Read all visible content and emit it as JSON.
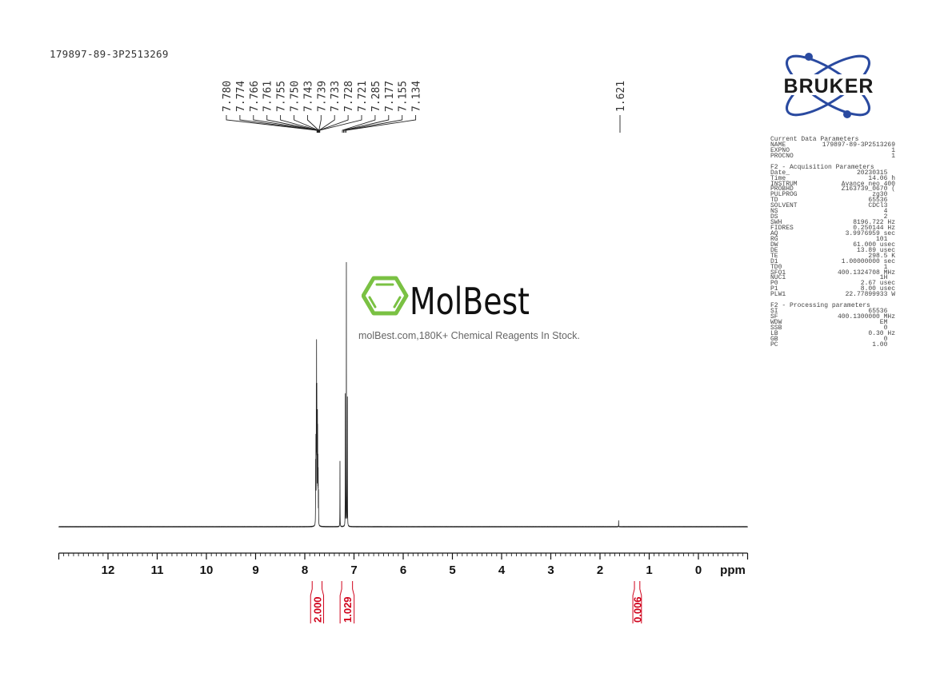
{
  "sample_id": "179897-89-3P2513269",
  "logo": {
    "text": "BRUKER",
    "color": "#1a3a8f"
  },
  "watermark": {
    "brand": "MolBest",
    "tagline": "molBest.com,180K+ Chemical Reagents In Stock.",
    "color": "#7ac143"
  },
  "parameters": {
    "sections": [
      {
        "title": "Current Data Parameters",
        "rows": [
          [
            "NAME",
            "179897-89-3P2513269"
          ],
          [
            "EXPNO",
            "1"
          ],
          [
            "PROCNO",
            "1"
          ]
        ]
      },
      {
        "title": "F2 - Acquisition Parameters",
        "rows": [
          [
            "Date_",
            "20230315  "
          ],
          [
            "Time",
            "14.06 h"
          ],
          [
            "INSTRUM",
            "Avance neo 400"
          ],
          [
            "PROBHD",
            "Z163739_0670 ("
          ],
          [
            "PULPROG",
            "zg30  "
          ],
          [
            "TD",
            "65536  "
          ],
          [
            "SOLVENT",
            "CDCl3  "
          ],
          [
            "NS",
            "4  "
          ],
          [
            "DS",
            "2  "
          ],
          [
            "SWH",
            "8196.722 Hz"
          ],
          [
            "FIDRES",
            "0.250144 Hz"
          ],
          [
            "AQ",
            "3.9976959 sec"
          ],
          [
            "RG",
            "101  "
          ],
          [
            "DW",
            "61.000 usec"
          ],
          [
            "DE",
            "13.89 usec"
          ],
          [
            "TE",
            "298.5 K"
          ],
          [
            "D1",
            "1.00000000 sec"
          ],
          [
            "TD0",
            "1  "
          ],
          [
            "SFO1",
            "400.1324708 MHz"
          ],
          [
            "NUC1",
            "1H  "
          ],
          [
            "P0",
            "2.67 usec"
          ],
          [
            "P1",
            "8.00 usec"
          ],
          [
            "PLW1",
            "22.77899933 W"
          ]
        ]
      },
      {
        "title": "F2 - Processing parameters",
        "rows": [
          [
            "SI",
            "65536  "
          ],
          [
            "SF",
            "400.1300000 MHz"
          ],
          [
            "WDW",
            "EM  "
          ],
          [
            "SSB",
            "0  "
          ],
          [
            "LB",
            "0.30 Hz"
          ],
          [
            "GB",
            "0  "
          ],
          [
            "PC",
            "1.00  "
          ]
        ]
      }
    ]
  },
  "chart_data": {
    "type": "line",
    "xlabel": "ppm",
    "xlim": [
      13,
      -1
    ],
    "x_reversed": true,
    "x_ticks": [
      "12",
      "11",
      "10",
      "9",
      "8",
      "7",
      "6",
      "5",
      "4",
      "3",
      "2",
      "1",
      "0"
    ],
    "grid": false,
    "peak_labels_group1": [
      "7.780",
      "7.774",
      "7.766",
      "7.761",
      "7.755",
      "7.750",
      "7.743",
      "7.739",
      "7.733",
      "7.728",
      "7.721",
      "7.285",
      "7.177",
      "7.155",
      "7.134"
    ],
    "peak_labels_group2": [
      "1.621"
    ],
    "peaks": [
      {
        "ppm": 7.78,
        "intensity": 0.22
      },
      {
        "ppm": 7.774,
        "intensity": 0.3
      },
      {
        "ppm": 7.766,
        "intensity": 0.45
      },
      {
        "ppm": 7.761,
        "intensity": 0.62
      },
      {
        "ppm": 7.755,
        "intensity": 0.45
      },
      {
        "ppm": 7.75,
        "intensity": 0.32
      },
      {
        "ppm": 7.743,
        "intensity": 0.36
      },
      {
        "ppm": 7.739,
        "intensity": 0.3
      },
      {
        "ppm": 7.733,
        "intensity": 0.22
      },
      {
        "ppm": 7.728,
        "intensity": 0.18
      },
      {
        "ppm": 7.721,
        "intensity": 0.12
      },
      {
        "ppm": 7.285,
        "intensity": 0.25
      },
      {
        "ppm": 7.177,
        "intensity": 0.5
      },
      {
        "ppm": 7.155,
        "intensity": 1.0
      },
      {
        "ppm": 7.134,
        "intensity": 0.48
      },
      {
        "ppm": 1.621,
        "intensity": 0.022
      }
    ],
    "integrals": [
      {
        "from": 7.85,
        "to": 7.65,
        "value": "2.000"
      },
      {
        "from": 7.25,
        "to": 7.03,
        "value": "1.029"
      },
      {
        "from": 1.3,
        "to": 1.19,
        "value": "0.006"
      }
    ],
    "integral_color": "#d0021b"
  }
}
